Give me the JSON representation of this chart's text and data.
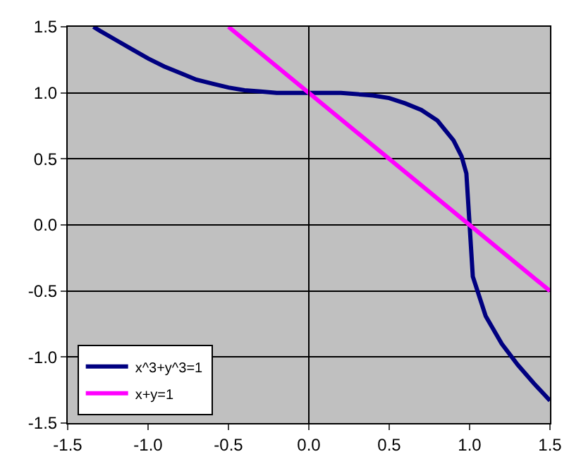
{
  "chart_data": {
    "type": "line",
    "xlim": [
      -1.5,
      1.5
    ],
    "xticks": [
      {
        "value": -1.5,
        "label": "-1.5"
      },
      {
        "value": -1.0,
        "label": "-1.0"
      },
      {
        "value": -0.5,
        "label": "-0.5"
      },
      {
        "value": 0.0,
        "label": "0.0"
      },
      {
        "value": 0.5,
        "label": "0.5"
      },
      {
        "value": 1.0,
        "label": "1.0"
      },
      {
        "value": 1.5,
        "label": "1.5"
      }
    ],
    "ylim": [
      -1.5,
      1.5
    ],
    "yticks": [
      {
        "value": -1.5,
        "label": "-1.5"
      },
      {
        "value": -1.0,
        "label": "-1.0"
      },
      {
        "value": -0.5,
        "label": "-0.5"
      },
      {
        "value": 0.0,
        "label": "0.0"
      },
      {
        "value": 0.5,
        "label": "0.5"
      },
      {
        "value": 1.0,
        "label": "1.0"
      },
      {
        "value": 1.5,
        "label": "1.5"
      }
    ],
    "ref_lines": [
      {
        "axis": "x",
        "value": 0
      }
    ],
    "grid": "y",
    "legend": "bottom left",
    "marker": "none",
    "line_style": "solid",
    "series": [
      {
        "name": "x^3+y^3=1",
        "color": "#000080",
        "x": [
          -1.34,
          -1.3,
          -1.2,
          -1.1,
          -1.0,
          -0.9,
          -0.8,
          -0.7,
          -0.6,
          -0.5,
          -0.4,
          -0.3,
          -0.2,
          -0.1,
          0.0,
          0.1,
          0.2,
          0.3,
          0.4,
          0.5,
          0.6,
          0.7,
          0.8,
          0.9,
          0.95,
          0.98,
          1.0,
          1.02,
          1.1,
          1.2,
          1.3,
          1.4,
          1.5
        ],
        "values": [
          1.5,
          1.47,
          1.4,
          1.33,
          1.26,
          1.2,
          1.15,
          1.1,
          1.07,
          1.04,
          1.02,
          1.01,
          1.0,
          1.0,
          1.0,
          1.0,
          1.0,
          0.99,
          0.98,
          0.96,
          0.92,
          0.87,
          0.79,
          0.64,
          0.52,
          0.39,
          0.0,
          -0.39,
          -0.69,
          -0.9,
          -1.06,
          -1.2,
          -1.33
        ]
      },
      {
        "name": "x+y=1",
        "color": "#ff00ff",
        "x": [
          -0.5,
          1.5
        ],
        "values": [
          1.5,
          -0.5
        ]
      }
    ]
  }
}
